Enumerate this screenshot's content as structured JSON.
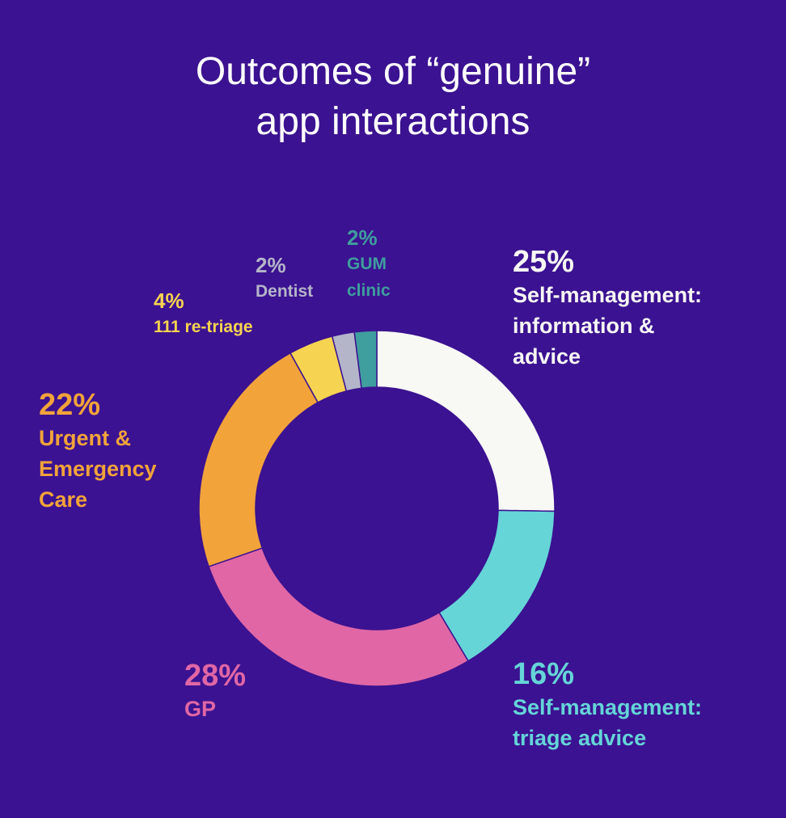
{
  "title_lines": [
    "Outcomes of “genuine”",
    "app interactions"
  ],
  "chart_data": {
    "type": "pie",
    "style": "donut",
    "start": "top",
    "direction": "clockwise",
    "title": "Outcomes of “genuine” app interactions",
    "segments": [
      {
        "label": "Self-management:\ninformation &\nadvice",
        "value": 25,
        "display": "25%",
        "color": "#f8f8f5"
      },
      {
        "label": "Self-management:\ntriage advice",
        "value": 16,
        "display": "16%",
        "color": "#65d5d8"
      },
      {
        "label": "GP",
        "value": 28,
        "display": "28%",
        "color": "#e066a5"
      },
      {
        "label": "Urgent &\nEmergency\nCare",
        "value": 22,
        "display": "22%",
        "color": "#f2a33a"
      },
      {
        "label": "111 re-triage",
        "value": 4,
        "display": "4%",
        "color": "#f6d350"
      },
      {
        "label": "Dentist",
        "value": 2,
        "display": "2%",
        "color": "#b5b5c9"
      },
      {
        "label": "GUM\nclinic",
        "value": 2,
        "display": "2%",
        "color": "#3f9e9e"
      }
    ]
  }
}
